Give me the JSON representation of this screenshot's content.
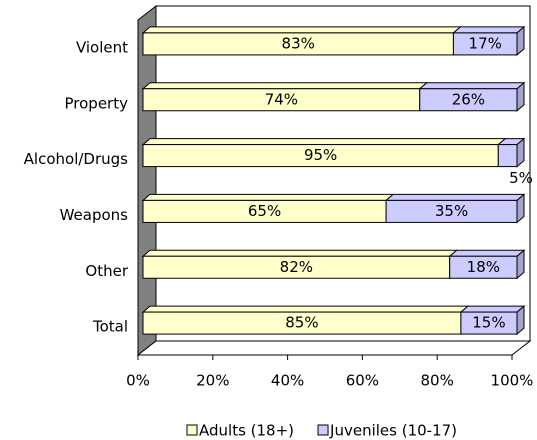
{
  "chart_data": {
    "type": "bar",
    "orientation": "horizontal",
    "stacked": true,
    "categories": [
      "Violent",
      "Property",
      "Alcohol/Drugs",
      "Weapons",
      "Other",
      "Total"
    ],
    "series": [
      {
        "name": "Adults (18+)",
        "color": "#ffffcc",
        "values": [
          83,
          74,
          95,
          65,
          82,
          85
        ],
        "value_labels": [
          "83%",
          "74%",
          "95%",
          "65%",
          "82%",
          "85%"
        ]
      },
      {
        "name": "Juveniles (10-17)",
        "color": "#ccccff",
        "values": [
          17,
          26,
          5,
          35,
          18,
          15
        ],
        "value_labels": [
          "17%",
          "26%",
          "5%",
          "35%",
          "18%",
          "15%"
        ]
      }
    ],
    "xlim": [
      0,
      100
    ],
    "xticks": [
      {
        "value": 0,
        "label": "0%"
      },
      {
        "value": 20,
        "label": "20%"
      },
      {
        "value": 40,
        "label": "40%"
      },
      {
        "value": 60,
        "label": "60%"
      },
      {
        "value": 80,
        "label": "80%"
      },
      {
        "value": 100,
        "label": "100%"
      }
    ],
    "legend": "bottom"
  }
}
